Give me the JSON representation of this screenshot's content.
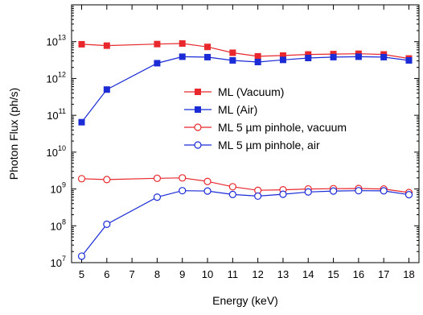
{
  "chart_data": {
    "type": "line",
    "xlabel": "Energy (keV)",
    "ylabel": "Photon Flux (ph/s)",
    "y_scale": "log",
    "xlim": [
      4.6,
      18.4
    ],
    "ylim": [
      10000000.0,
      100000000000000.0
    ],
    "x_ticks": [
      5,
      6,
      7,
      8,
      9,
      10,
      11,
      12,
      13,
      14,
      15,
      16,
      17,
      18
    ],
    "y_ticks": [
      {
        "base": "10",
        "exp": "7"
      },
      {
        "base": "10",
        "exp": "8"
      },
      {
        "base": "10",
        "exp": "9"
      },
      {
        "base": "10",
        "exp": "10"
      },
      {
        "base": "10",
        "exp": "11"
      },
      {
        "base": "10",
        "exp": "12"
      },
      {
        "base": "10",
        "exp": "13"
      }
    ],
    "grid": false,
    "legend_position": "center-right",
    "series": [
      {
        "name": "ML (Vacuum)",
        "color": "#e8282d",
        "marker": "filled-square",
        "x": [
          5,
          6,
          8,
          9,
          10,
          11,
          12,
          13,
          14,
          15,
          16,
          17,
          18
        ],
        "y": [
          8500000000000.0,
          7800000000000.0,
          8600000000000.0,
          8900000000000.0,
          7200000000000.0,
          5000000000000.0,
          4000000000000.0,
          4200000000000.0,
          4500000000000.0,
          4600000000000.0,
          4700000000000.0,
          4500000000000.0,
          3500000000000.0
        ]
      },
      {
        "name": "ML (Air)",
        "color": "#1b2bd6",
        "marker": "filled-square",
        "x": [
          5,
          6,
          8,
          9,
          10,
          11,
          12,
          13,
          14,
          15,
          16,
          17,
          18
        ],
        "y": [
          65000000000.0,
          500000000000.0,
          2600000000000.0,
          3900000000000.0,
          3800000000000.0,
          3100000000000.0,
          2800000000000.0,
          3200000000000.0,
          3600000000000.0,
          3800000000000.0,
          3900000000000.0,
          3800000000000.0,
          3100000000000.0
        ]
      },
      {
        "name": "ML 5 µm pinhole, vacuum",
        "color": "#e8282d",
        "marker": "open-circle",
        "x": [
          5,
          6,
          8,
          9,
          10,
          11,
          12,
          13,
          14,
          15,
          16,
          17,
          18
        ],
        "y": [
          1900000000.0,
          1800000000.0,
          1950000000.0,
          2000000000.0,
          1600000000.0,
          1150000000.0,
          920000000.0,
          950000000.0,
          1000000000.0,
          1020000000.0,
          1030000000.0,
          1000000000.0,
          800000000.0
        ]
      },
      {
        "name": "ML 5 µm pinhole, air",
        "color": "#1b2bd6",
        "marker": "open-circle",
        "x": [
          5,
          6,
          8,
          9,
          10,
          11,
          12,
          13,
          14,
          15,
          16,
          17,
          18
        ],
        "y": [
          15000000.0,
          110000000.0,
          600000000.0,
          900000000.0,
          880000000.0,
          710000000.0,
          640000000.0,
          720000000.0,
          830000000.0,
          880000000.0,
          900000000.0,
          890000000.0,
          700000000.0
        ]
      }
    ]
  }
}
